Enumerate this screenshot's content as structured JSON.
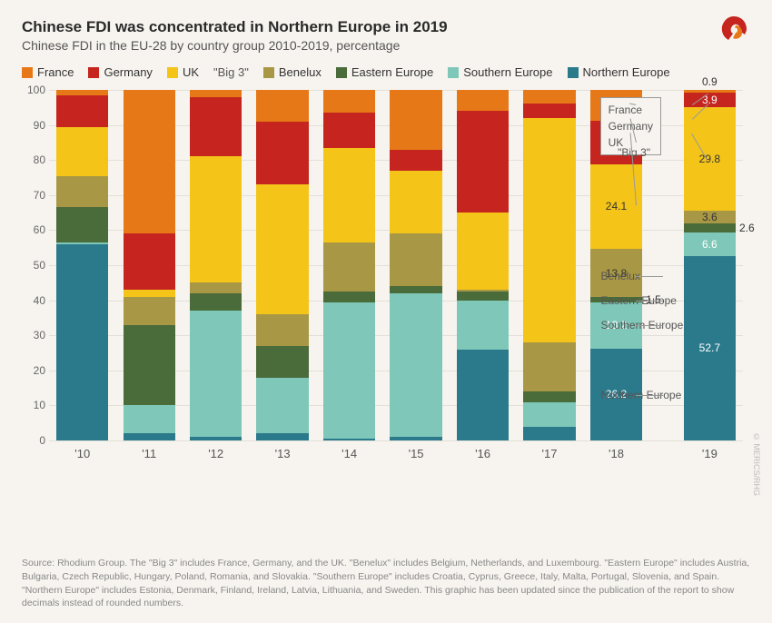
{
  "title": "Chinese FDI was concentrated in Northern Europe in 2019",
  "subtitle": "Chinese FDI in the EU-28 by country group 2010-2019, percentage",
  "credit": "© MERICS/RHG",
  "footer": "Source: Rhodium Group. The \"Big 3\" includes France, Germany, and the UK. \"Benelux\" includes Belgium, Netherlands, and Luxembourg. \"Eastern Europe\" includes Austria, Bulgaria, Czech Republic, Hungary, Poland, Romania, and Slovakia. \"Southern Europe\" includes Croatia, Cyprus, Greece, Italy, Malta, Portugal, Slovenia, and Spain. \"Northern Europe\" includes Estonia, Denmark, Finland, Ireland, Latvia, Lithuania, and Sweden. This graphic has been updated since the publication of the report to show decimals instead of rounded numbers.",
  "colors": {
    "france": "#e77817",
    "germany": "#c5251e",
    "uk": "#f4c419",
    "benelux": "#a89845",
    "eastern": "#4a6b3a",
    "southern": "#7fc7b8",
    "northern": "#2b7a8c",
    "grid": "#e3e0d9",
    "bg": "#f7f4ef"
  },
  "legend": [
    {
      "label": "France",
      "colorKey": "france"
    },
    {
      "label": "Germany",
      "colorKey": "germany"
    },
    {
      "label": "UK",
      "colorKey": "uk"
    },
    {
      "label": "\"Big 3\"",
      "plain": true
    },
    {
      "label": "Benelux",
      "colorKey": "benelux"
    },
    {
      "label": "Eastern Europe",
      "colorKey": "eastern"
    },
    {
      "label": "Southern Europe",
      "colorKey": "southern"
    },
    {
      "label": "Northern Europe",
      "colorKey": "northern"
    }
  ],
  "yaxis": {
    "min": 0,
    "max": 100,
    "step": 10
  },
  "series_order": [
    "northern",
    "southern",
    "eastern",
    "benelux",
    "uk",
    "germany",
    "france"
  ],
  "years": [
    "'10",
    "'11",
    "'12",
    "'13",
    "'14",
    "'15",
    "'16",
    "'17",
    "'18",
    "'19"
  ],
  "data": {
    "'10": {
      "northern": 56,
      "southern": 0.5,
      "eastern": 10,
      "benelux": 9,
      "uk": 14,
      "germany": 9,
      "france": 1.5
    },
    "'11": {
      "northern": 2,
      "southern": 8,
      "eastern": 23,
      "benelux": 8,
      "uk": 2,
      "germany": 16,
      "france": 41
    },
    "'12": {
      "northern": 1,
      "southern": 36,
      "eastern": 5,
      "benelux": 3,
      "uk": 36,
      "germany": 17,
      "france": 2
    },
    "'13": {
      "northern": 2,
      "southern": 16,
      "eastern": 9,
      "benelux": 9,
      "uk": 37,
      "germany": 18,
      "france": 9
    },
    "'14": {
      "northern": 0.5,
      "southern": 39,
      "eastern": 3,
      "benelux": 14,
      "uk": 27,
      "germany": 10,
      "france": 6.5
    },
    "'15": {
      "northern": 1,
      "southern": 41,
      "eastern": 2,
      "benelux": 15,
      "uk": 18,
      "germany": 6,
      "france": 17
    },
    "'16": {
      "northern": 26,
      "southern": 14,
      "eastern": 2.5,
      "benelux": 0.5,
      "uk": 22,
      "germany": 29,
      "france": 6
    },
    "'17": {
      "northern": 4,
      "southern": 7,
      "eastern": 3,
      "benelux": 14,
      "uk": 64,
      "germany": 4,
      "france": 4
    },
    "'18": {
      "northern": 26.2,
      "southern": 13.2,
      "eastern": 1.5,
      "benelux": 13.8,
      "uk": 24.1,
      "germany": 12.3,
      "france": 8.9
    },
    "'19": {
      "northern": 52.7,
      "southern": 6.6,
      "eastern": 2.6,
      "benelux": 3.6,
      "uk": 29.8,
      "germany": 3.9,
      "france": 0.9
    }
  },
  "barLabels": {
    "'18": {
      "northern": "26.2",
      "southern": "13.2",
      "eastern": "1.5",
      "benelux": "13.8",
      "uk": "24.1",
      "germany": "12.3",
      "france": "8.9"
    },
    "'19": {
      "northern": "52.7",
      "southern": "6.6",
      "eastern": "2.6",
      "benelux": "3.6",
      "uk": "29.8",
      "germany": "3.9",
      "france": "0.9"
    }
  },
  "calloutBox": {
    "lines": [
      "France",
      "Germany",
      "UK"
    ],
    "sub": "\"Big 3\""
  },
  "regionCallouts": [
    "Benelux",
    "Eastern Europe",
    "Southern Europe",
    "Northern Europe"
  ]
}
